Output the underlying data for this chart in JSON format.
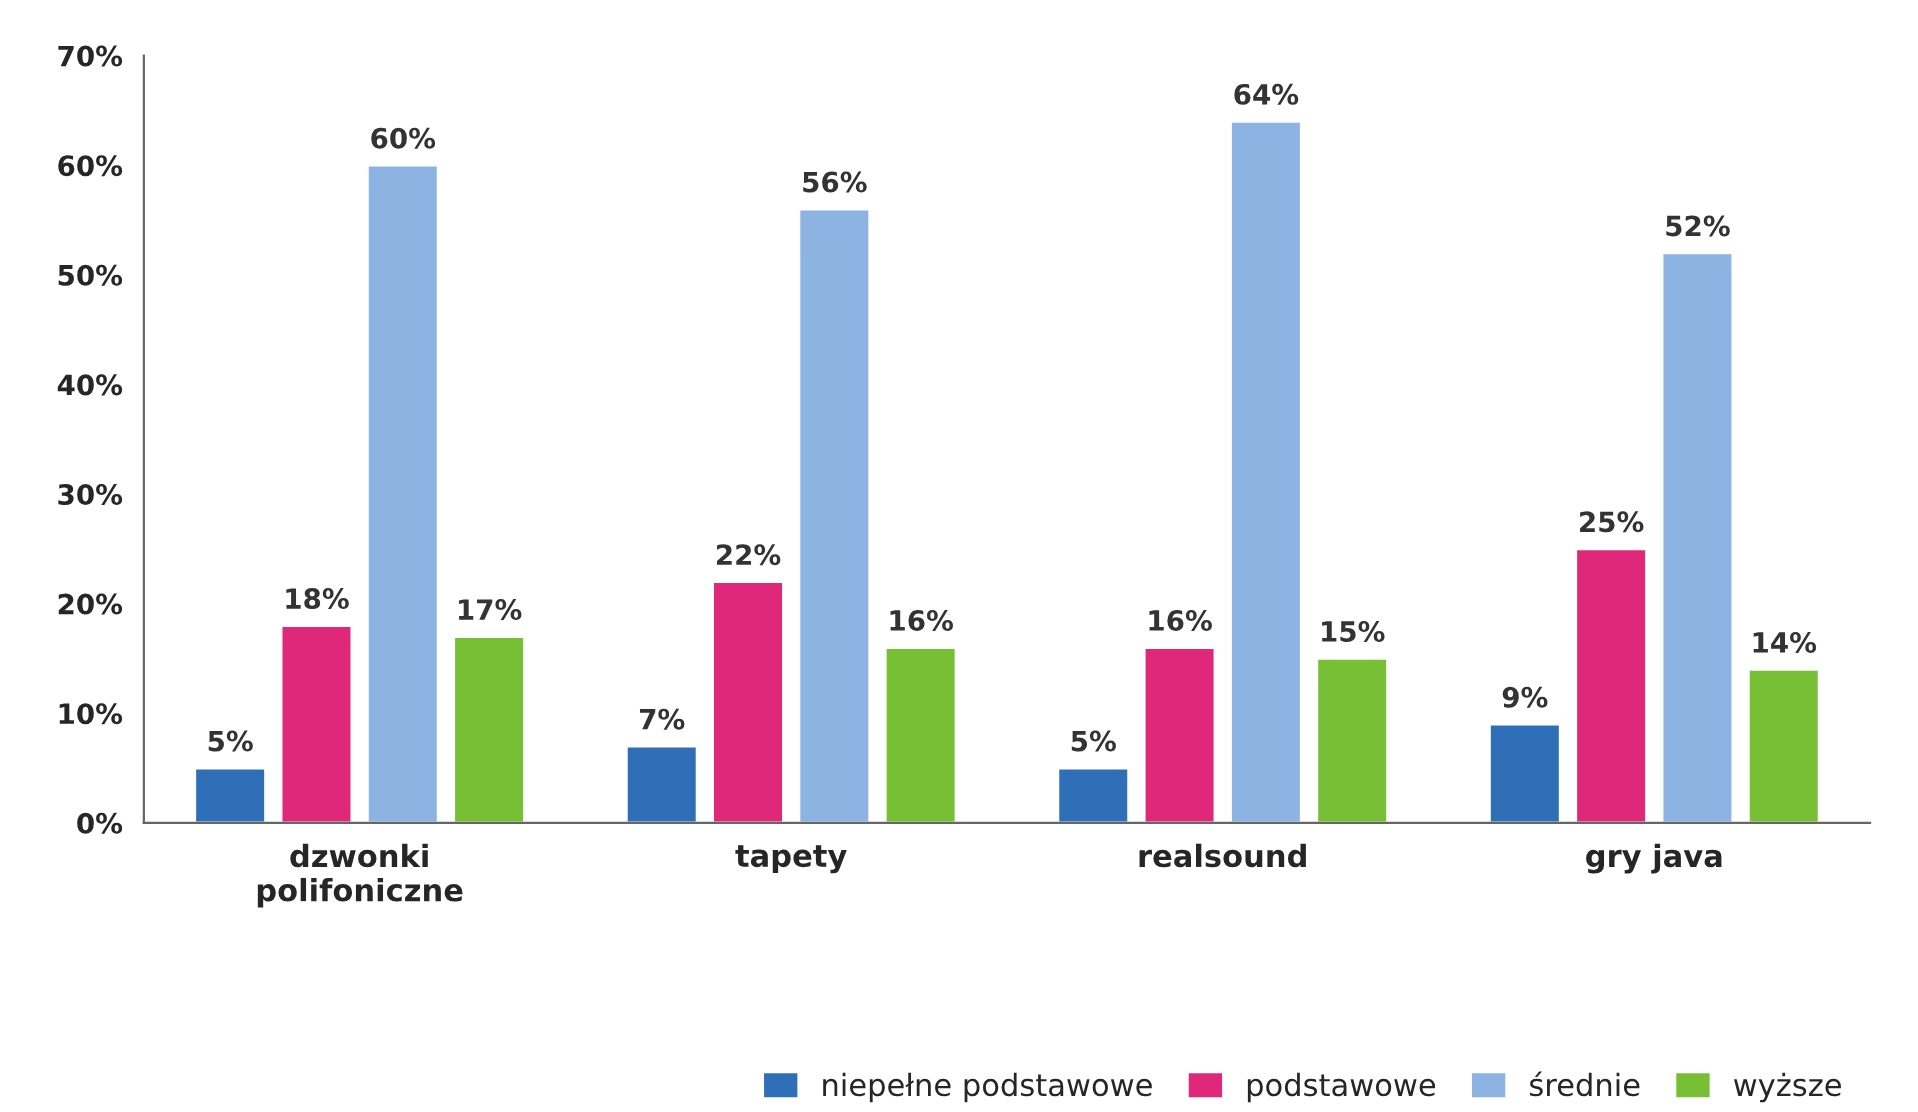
{
  "chart_data": {
    "type": "bar",
    "categories": [
      "dzwonki\npolifoniczne",
      "tapety",
      "realsound",
      "gry java"
    ],
    "series": [
      {
        "name": "niepełne podstawowe",
        "color": "#2f6fb8",
        "values": [
          5,
          7,
          5,
          9
        ]
      },
      {
        "name": "podstawowe",
        "color": "#e0287a",
        "values": [
          18,
          22,
          16,
          25
        ]
      },
      {
        "name": "średnie",
        "color": "#8db3e2",
        "values": [
          60,
          56,
          64,
          52
        ]
      },
      {
        "name": "wyższe",
        "color": "#77bf35",
        "values": [
          17,
          16,
          15,
          14
        ]
      }
    ],
    "ylim": [
      0,
      70
    ],
    "yticks": [
      {
        "value": 0,
        "label": "0%"
      },
      {
        "value": 10,
        "label": "10%"
      },
      {
        "value": 20,
        "label": "20%"
      },
      {
        "value": 30,
        "label": "30%"
      },
      {
        "value": 40,
        "label": "40%"
      },
      {
        "value": 50,
        "label": "50%"
      },
      {
        "value": 60,
        "label": "60%"
      },
      {
        "value": 70,
        "label": "70%"
      }
    ],
    "value_labels": [
      [
        "5%",
        "7%",
        "5%",
        "9%"
      ],
      [
        "18%",
        "22%",
        "16%",
        "25%"
      ],
      [
        "60%",
        "56%",
        "64%",
        "52%"
      ],
      [
        "17%",
        "16%",
        "15%",
        "14%"
      ]
    ],
    "grid": false,
    "legend": "bottom right"
  }
}
